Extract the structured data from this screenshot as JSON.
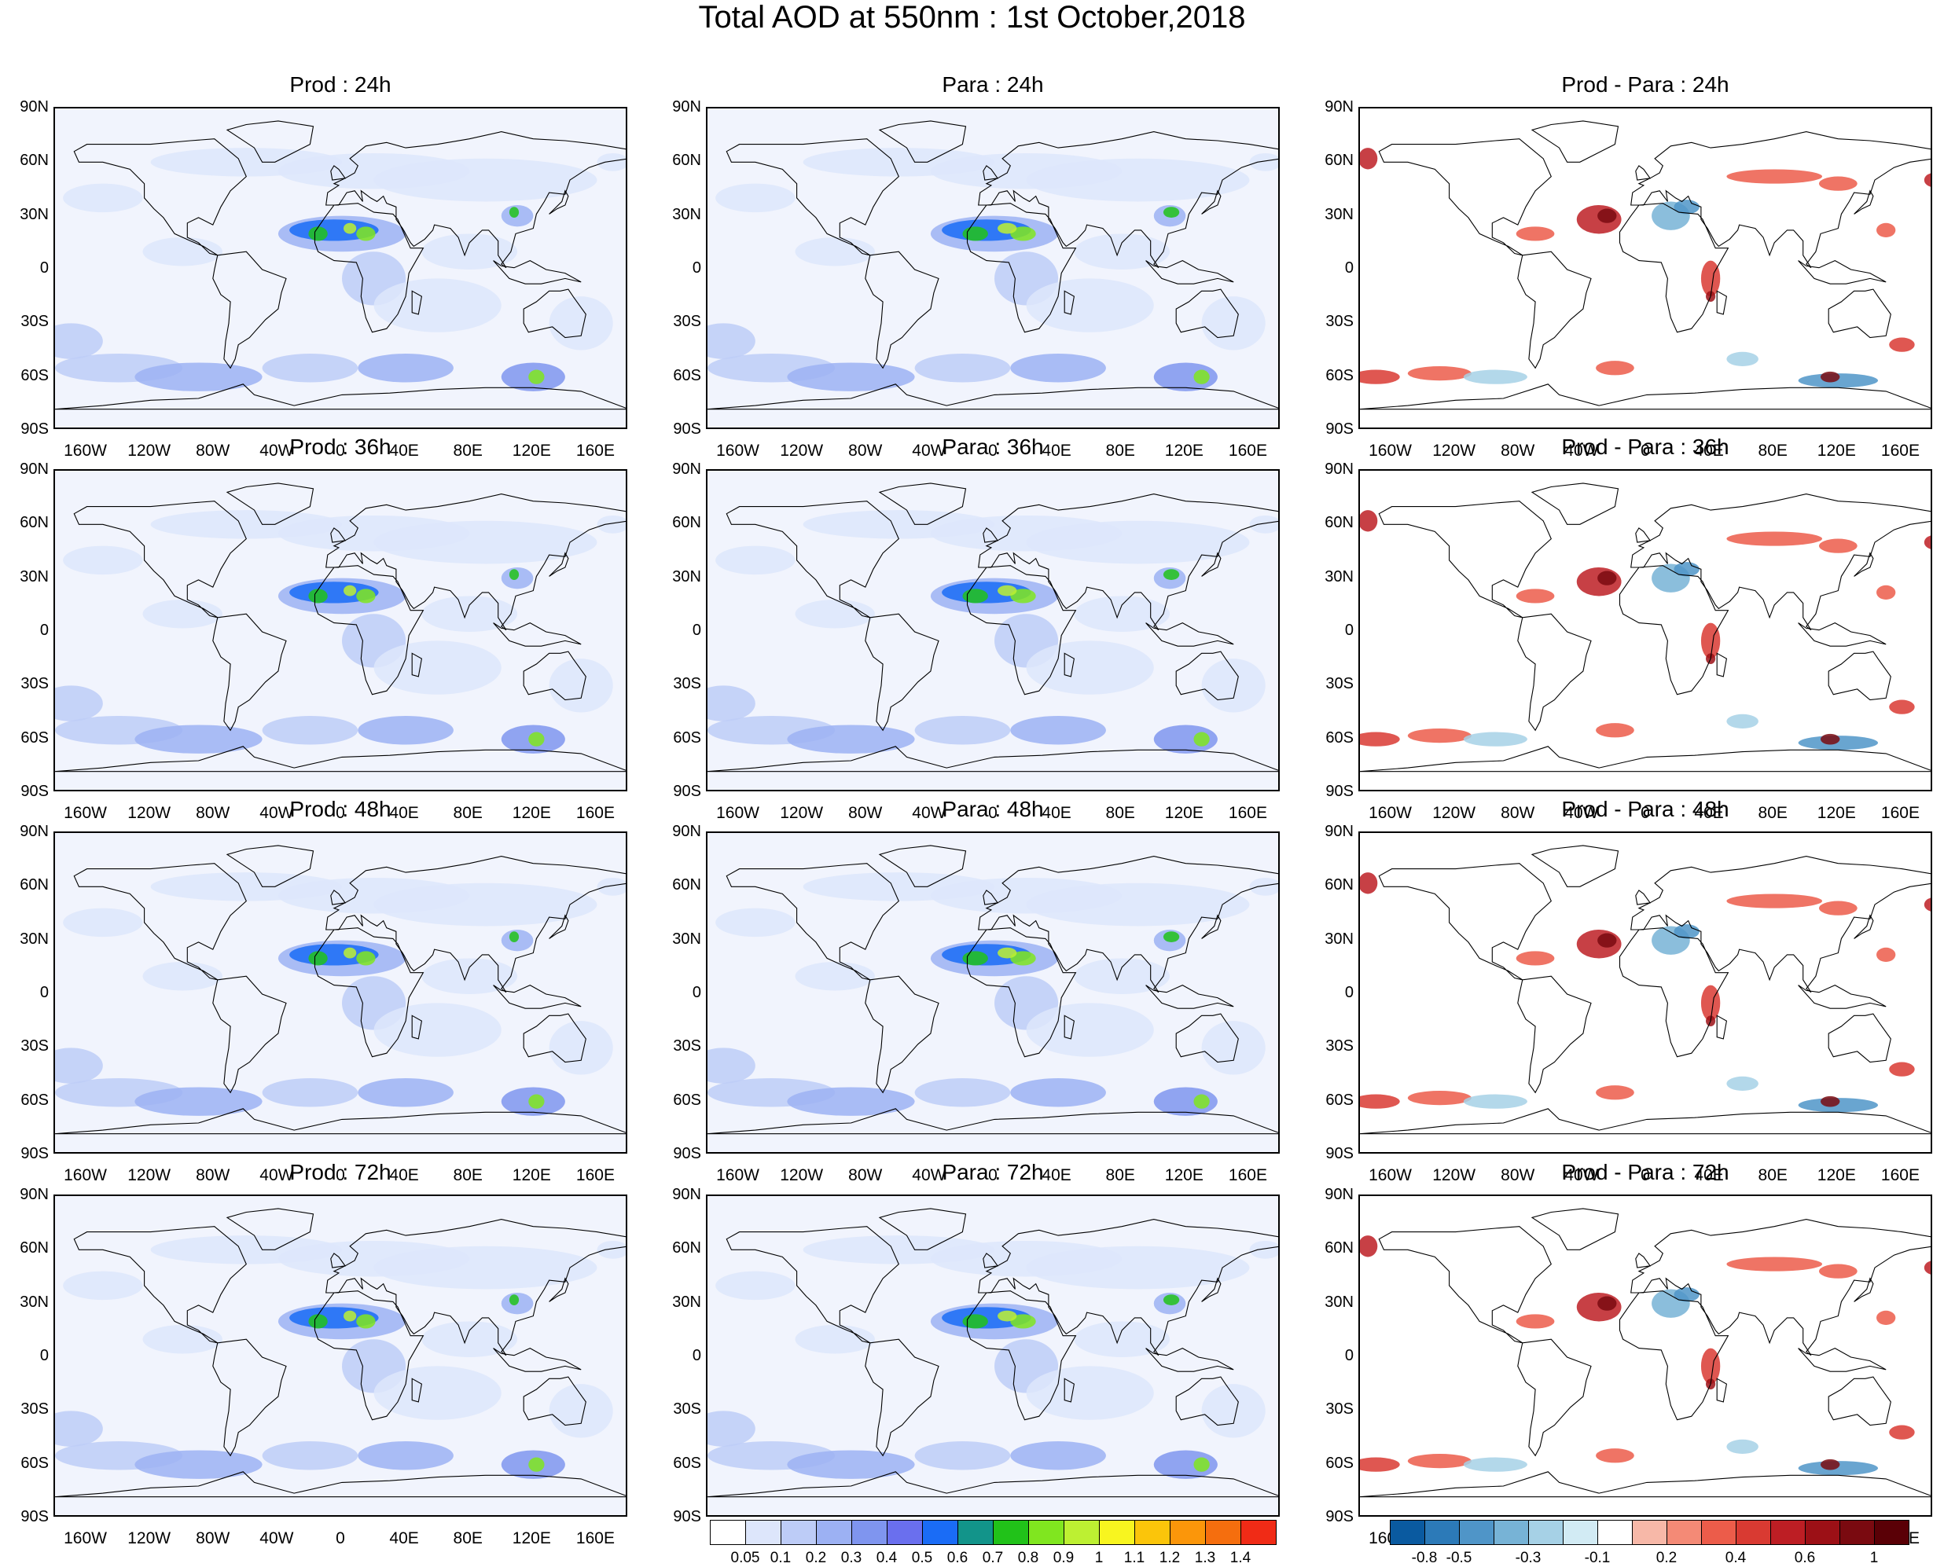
{
  "title": "Total AOD at 550nm : 1st October,2018",
  "lat_labels": [
    "90N",
    "60N",
    "30N",
    "0",
    "30S",
    "60S",
    "90S"
  ],
  "lon_labels": [
    "160W",
    "120W",
    "80W",
    "40W",
    "0",
    "40E",
    "80E",
    "120E",
    "160E"
  ],
  "panels": [
    {
      "title": "Prod : 24h",
      "kind": "aod",
      "src": "prod",
      "hour": 24
    },
    {
      "title": "Para : 24h",
      "kind": "aod",
      "src": "para",
      "hour": 24
    },
    {
      "title": "Prod - Para : 24h",
      "kind": "diff",
      "hour": 24
    },
    {
      "title": "Prod : 36h",
      "kind": "aod",
      "src": "prod",
      "hour": 36
    },
    {
      "title": "Para : 36h",
      "kind": "aod",
      "src": "para",
      "hour": 36
    },
    {
      "title": "Prod - Para : 36h",
      "kind": "diff",
      "hour": 36
    },
    {
      "title": "Prod : 48h",
      "kind": "aod",
      "src": "prod",
      "hour": 48
    },
    {
      "title": "Para : 48h",
      "kind": "aod",
      "src": "para",
      "hour": 48
    },
    {
      "title": "Prod - Para : 48h",
      "kind": "diff",
      "hour": 48
    },
    {
      "title": "Prod : 72h",
      "kind": "aod",
      "src": "prod",
      "hour": 72
    },
    {
      "title": "Para : 72h",
      "kind": "aod",
      "src": "para",
      "hour": 72
    },
    {
      "title": "Prod - Para : 72h",
      "kind": "diff",
      "hour": 72
    }
  ],
  "aod_colorbar": {
    "labels": [
      "0.05",
      "0.1",
      "0.2",
      "0.3",
      "0.4",
      "0.5",
      "0.6",
      "0.7",
      "0.8",
      "0.9",
      "1",
      "1.1",
      "1.2",
      "1.3",
      "1.4"
    ],
    "colors": [
      "#ffffff",
      "#dde6fb",
      "#bdccf7",
      "#9cb1f3",
      "#7f95ef",
      "#6a6fee",
      "#1a6cf6",
      "#12948a",
      "#21c219",
      "#80e61f",
      "#bdf032",
      "#f8f51f",
      "#fbc50a",
      "#fb960a",
      "#f56e0e",
      "#f02b16"
    ]
  },
  "diff_colorbar": {
    "labels": [
      "-0.8",
      "-0.5",
      "-0.3",
      "-0.1",
      "0.2",
      "0.4",
      "0.6",
      "1"
    ],
    "colors": [
      "#0a5aa0",
      "#2c7ab8",
      "#4f95c8",
      "#77b3d6",
      "#a6d1e6",
      "#d2ebf4",
      "#ffffff",
      "#f7b8a8",
      "#f48a76",
      "#ec5c4a",
      "#d93a32",
      "#bd1e24",
      "#9c1016",
      "#7a0a10",
      "#5a0006"
    ]
  }
}
